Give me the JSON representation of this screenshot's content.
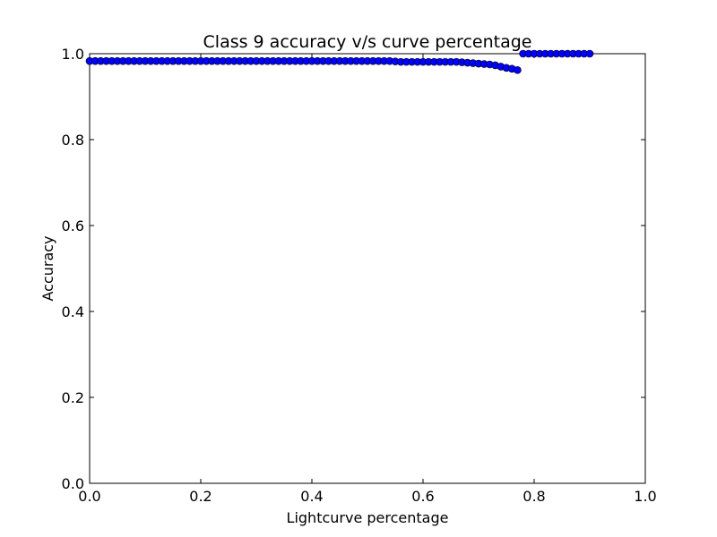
{
  "chart_data": {
    "type": "scatter",
    "title": "Class 9 accuracy v/s curve percentage",
    "xlabel": "Lightcurve percentage",
    "ylabel": "Accuracy",
    "xlim": [
      0.0,
      1.0
    ],
    "ylim": [
      0.0,
      1.0
    ],
    "xticks": [
      "0.0",
      "0.2",
      "0.4",
      "0.6",
      "0.8",
      "1.0"
    ],
    "yticks": [
      "0.0",
      "0.2",
      "0.4",
      "0.6",
      "0.8",
      "1.0"
    ],
    "grid": false,
    "marker_color": "#0000ff",
    "series": [
      {
        "x": [
          0.0,
          0.01,
          0.02,
          0.03,
          0.04,
          0.05,
          0.06,
          0.07,
          0.08,
          0.09,
          0.1,
          0.11,
          0.12,
          0.13,
          0.14,
          0.15,
          0.16,
          0.17,
          0.18,
          0.19,
          0.2,
          0.21,
          0.22,
          0.23,
          0.24,
          0.25,
          0.26,
          0.27,
          0.28,
          0.29,
          0.3,
          0.31,
          0.32,
          0.33,
          0.34,
          0.35,
          0.36,
          0.37,
          0.38,
          0.39,
          0.4,
          0.41,
          0.42,
          0.43,
          0.44,
          0.45,
          0.46,
          0.47,
          0.48,
          0.49,
          0.5,
          0.51,
          0.52,
          0.53,
          0.54,
          0.55,
          0.56,
          0.57,
          0.58,
          0.59,
          0.6,
          0.61,
          0.62,
          0.63,
          0.64,
          0.65,
          0.66,
          0.67,
          0.68,
          0.69,
          0.7,
          0.71,
          0.72,
          0.73,
          0.74,
          0.75,
          0.76,
          0.77,
          0.78,
          0.79,
          0.8,
          0.81,
          0.82,
          0.83,
          0.84,
          0.85,
          0.86,
          0.87,
          0.88,
          0.89,
          0.9
        ],
        "y": [
          0.983,
          0.983,
          0.983,
          0.983,
          0.983,
          0.983,
          0.983,
          0.983,
          0.983,
          0.983,
          0.983,
          0.983,
          0.983,
          0.983,
          0.983,
          0.983,
          0.983,
          0.983,
          0.983,
          0.983,
          0.983,
          0.983,
          0.983,
          0.983,
          0.983,
          0.983,
          0.983,
          0.983,
          0.983,
          0.983,
          0.983,
          0.983,
          0.983,
          0.983,
          0.983,
          0.983,
          0.983,
          0.983,
          0.983,
          0.983,
          0.983,
          0.983,
          0.983,
          0.983,
          0.983,
          0.983,
          0.983,
          0.983,
          0.983,
          0.983,
          0.983,
          0.983,
          0.983,
          0.983,
          0.983,
          0.982,
          0.981,
          0.981,
          0.981,
          0.981,
          0.981,
          0.981,
          0.981,
          0.981,
          0.981,
          0.981,
          0.981,
          0.98,
          0.979,
          0.978,
          0.977,
          0.976,
          0.975,
          0.973,
          0.97,
          0.967,
          0.965,
          0.962,
          1.0,
          1.0,
          1.0,
          1.0,
          1.0,
          1.0,
          1.0,
          1.0,
          1.0,
          1.0,
          1.0,
          1.0,
          1.0
        ]
      }
    ]
  }
}
